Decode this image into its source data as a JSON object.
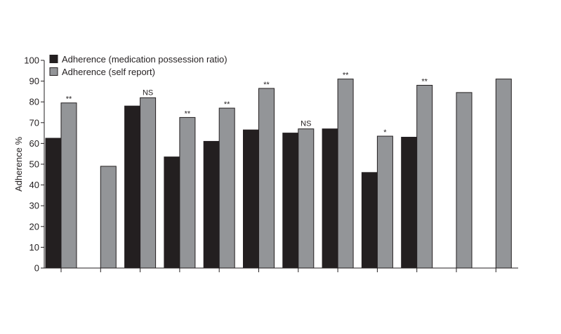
{
  "chart_data": {
    "type": "bar",
    "title": "",
    "xlabel": "",
    "ylabel": "Adherence %",
    "ylim": [
      0,
      100
    ],
    "yticks": [
      0,
      10,
      20,
      30,
      40,
      50,
      60,
      70,
      80,
      90,
      100
    ],
    "categories": [
      "",
      "",
      "",
      "",
      "",
      "",
      "",
      "",
      "",
      "",
      "",
      ""
    ],
    "series": [
      {
        "name": "Adherence (medication possession ratio)",
        "color": "#231f20",
        "values": [
          62.5,
          null,
          78,
          53.5,
          61,
          66.5,
          65,
          67,
          46,
          63,
          null,
          null
        ]
      },
      {
        "name": "Adherence (self report)",
        "color": "#939598",
        "values": [
          79.5,
          49,
          82,
          72.5,
          77,
          86.5,
          67,
          91,
          63.5,
          88,
          84.5,
          91
        ]
      }
    ],
    "significance": [
      "**",
      "",
      "NS",
      "**",
      "**",
      "**",
      "NS",
      "**",
      "*",
      "**",
      "",
      ""
    ],
    "legend_position": "top-left",
    "grid": false
  }
}
